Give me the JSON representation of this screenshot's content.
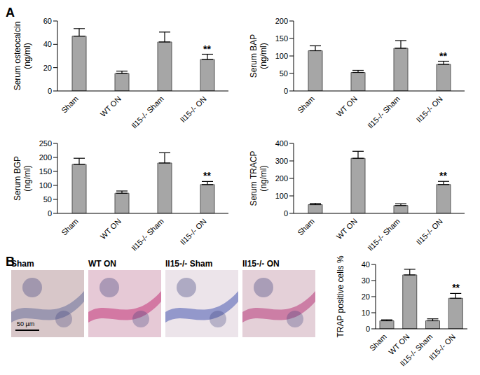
{
  "panel_labels": [
    "A",
    "B"
  ],
  "chart_data": [
    {
      "type": "bar",
      "y_label": [
        "Serum osteocalcin",
        "(ng/ml)"
      ],
      "categories": [
        "Sham",
        "WT ON",
        "Il15-/- Sham",
        "Il15-/- ON"
      ],
      "values": [
        47,
        15,
        42,
        27
      ],
      "errors": [
        6.5,
        2,
        8.5,
        4.5
      ],
      "annotations": [
        {
          "category": "Il15-/- ON",
          "text": "**"
        }
      ],
      "color": "#a6a6a6",
      "ylim": [
        0,
        60
      ],
      "yticks": [
        0,
        20,
        40,
        60
      ]
    },
    {
      "type": "bar",
      "y_label": [
        "Serum BAP",
        "(ng/ml)"
      ],
      "categories": [
        "Sham",
        "WT ON",
        "Il15-/- Sham",
        "Il15-/- ON"
      ],
      "values": [
        115,
        53,
        122,
        76
      ],
      "errors": [
        14,
        6,
        22,
        9
      ],
      "annotations": [
        {
          "category": "Il15-/- ON",
          "text": "**"
        }
      ],
      "color": "#a6a6a6",
      "ylim": [
        0,
        200
      ],
      "yticks": [
        0,
        50,
        100,
        150,
        200
      ]
    },
    {
      "type": "bar",
      "y_label": [
        "Serum BGP",
        "(ng/ml)"
      ],
      "categories": [
        "Sham",
        "WT ON",
        "Il15-/- Sham",
        "Il15-/- ON"
      ],
      "values": [
        175,
        72,
        180,
        103
      ],
      "errors": [
        22,
        8,
        37,
        11
      ],
      "annotations": [
        {
          "category": "Il15-/- ON",
          "text": "**"
        }
      ],
      "color": "#a6a6a6",
      "ylim": [
        0,
        250
      ],
      "yticks": [
        0,
        50,
        100,
        150,
        200,
        250
      ]
    },
    {
      "type": "bar",
      "y_label": [
        "Serum TRACP",
        "(ng/ml)"
      ],
      "categories": [
        "Sham",
        "WT ON",
        "Il15-/- Sham",
        "Il15-/- ON"
      ],
      "values": [
        50,
        315,
        45,
        165
      ],
      "errors": [
        7,
        40,
        10,
        18
      ],
      "annotations": [
        {
          "category": "Il15-/- ON",
          "text": "**"
        }
      ],
      "color": "#a6a6a6",
      "ylim": [
        0,
        400
      ],
      "yticks": [
        0,
        100,
        200,
        300,
        400
      ]
    },
    {
      "type": "bar",
      "y_label": [
        "TRAP positive cells %"
      ],
      "categories": [
        "Sham",
        "WT ON",
        "Il15-/- Sham",
        "Il15-/- ON"
      ],
      "values": [
        5,
        33.5,
        5,
        19
      ],
      "errors": [
        0.6,
        3.5,
        1.2,
        3
      ],
      "annotations": [
        {
          "category": "Il15-/- ON",
          "text": "**"
        }
      ],
      "color": "#a6a6a6",
      "ylim": [
        0,
        40
      ],
      "yticks": [
        0,
        10,
        20,
        30,
        40
      ]
    }
  ],
  "images": {
    "labels": [
      "Sham",
      "WT ON",
      "Il15-/- Sham",
      "Il15-/- ON"
    ],
    "scale_bar": "50 µm"
  }
}
